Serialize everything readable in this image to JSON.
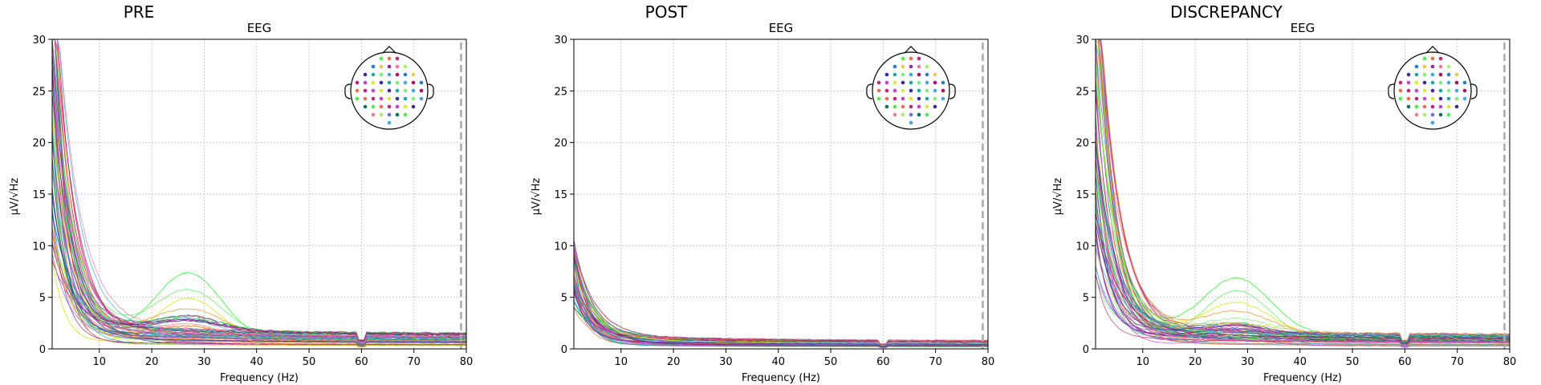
{
  "chart_data": [
    {
      "type": "line",
      "title": "PRE",
      "subtitle": "EEG",
      "xlabel": "Frequency (Hz)",
      "ylabel": "µV/√Hz",
      "xlim": [
        1,
        80
      ],
      "ylim": [
        0,
        30
      ],
      "xticks": [
        10,
        20,
        30,
        40,
        50,
        60,
        70,
        80
      ],
      "yticks": [
        0,
        5,
        10,
        15,
        20,
        25,
        30
      ],
      "grid": true,
      "legend": "sensor-topomap-top-right",
      "vline_x": 79,
      "series_profile": {
        "low_freq_start_range": [
          7,
          40
        ],
        "tail_range": [
          0.3,
          1.5
        ],
        "highlighted_bump": {
          "center_hz": 27,
          "peak_values": [
            7.5,
            6.0,
            5.0,
            4.2
          ],
          "width_hz": 9
        },
        "line_notch_hz": 60
      }
    },
    {
      "type": "line",
      "title": "POST",
      "subtitle": "EEG",
      "xlabel": "Frequency (Hz)",
      "ylabel": "µV/√Hz",
      "xlim": [
        1,
        80
      ],
      "ylim": [
        0,
        30
      ],
      "xticks": [
        10,
        20,
        30,
        40,
        50,
        60,
        70,
        80
      ],
      "yticks": [
        0,
        5,
        10,
        15,
        20,
        25,
        30
      ],
      "grid": true,
      "legend": "sensor-topomap-top-right",
      "vline_x": 79,
      "series_profile": {
        "low_freq_start_range": [
          3,
          10
        ],
        "tail_range": [
          0.2,
          0.8
        ],
        "highlighted_bump": null,
        "line_notch_hz": 60
      }
    },
    {
      "type": "line",
      "title": "DISCREPANCY",
      "subtitle": "EEG",
      "xlabel": "Frequency (Hz)",
      "ylabel": "µV/√Hz",
      "xlim": [
        1,
        80
      ],
      "ylim": [
        0,
        30
      ],
      "xticks": [
        10,
        20,
        30,
        40,
        50,
        60,
        70,
        80
      ],
      "yticks": [
        0,
        5,
        10,
        15,
        20,
        25,
        30
      ],
      "grid": true,
      "legend": "sensor-topomap-top-right",
      "vline_x": 79,
      "series_profile": {
        "low_freq_start_range": [
          6,
          40
        ],
        "tail_range": [
          0.2,
          1.4
        ],
        "highlighted_bump": {
          "center_hz": 28,
          "peak_values": [
            7.2,
            5.8,
            4.8,
            4.0
          ],
          "width_hz": 9
        },
        "line_notch_hz": 60
      }
    }
  ],
  "colors": {
    "axis": "#000000",
    "grid": "#b0b0b0",
    "vline": "#aaaaaa",
    "sensor_palette": [
      "#4ef04e",
      "#7ef07a",
      "#d9e83a",
      "#e8a94a",
      "#e8744a",
      "#49a4e0",
      "#6b6fd8",
      "#3a2d9a",
      "#8d2aa0",
      "#c0267a",
      "#a81060",
      "#11705a",
      "#20a8a0",
      "#f07aa0",
      "#c045d0"
    ]
  }
}
